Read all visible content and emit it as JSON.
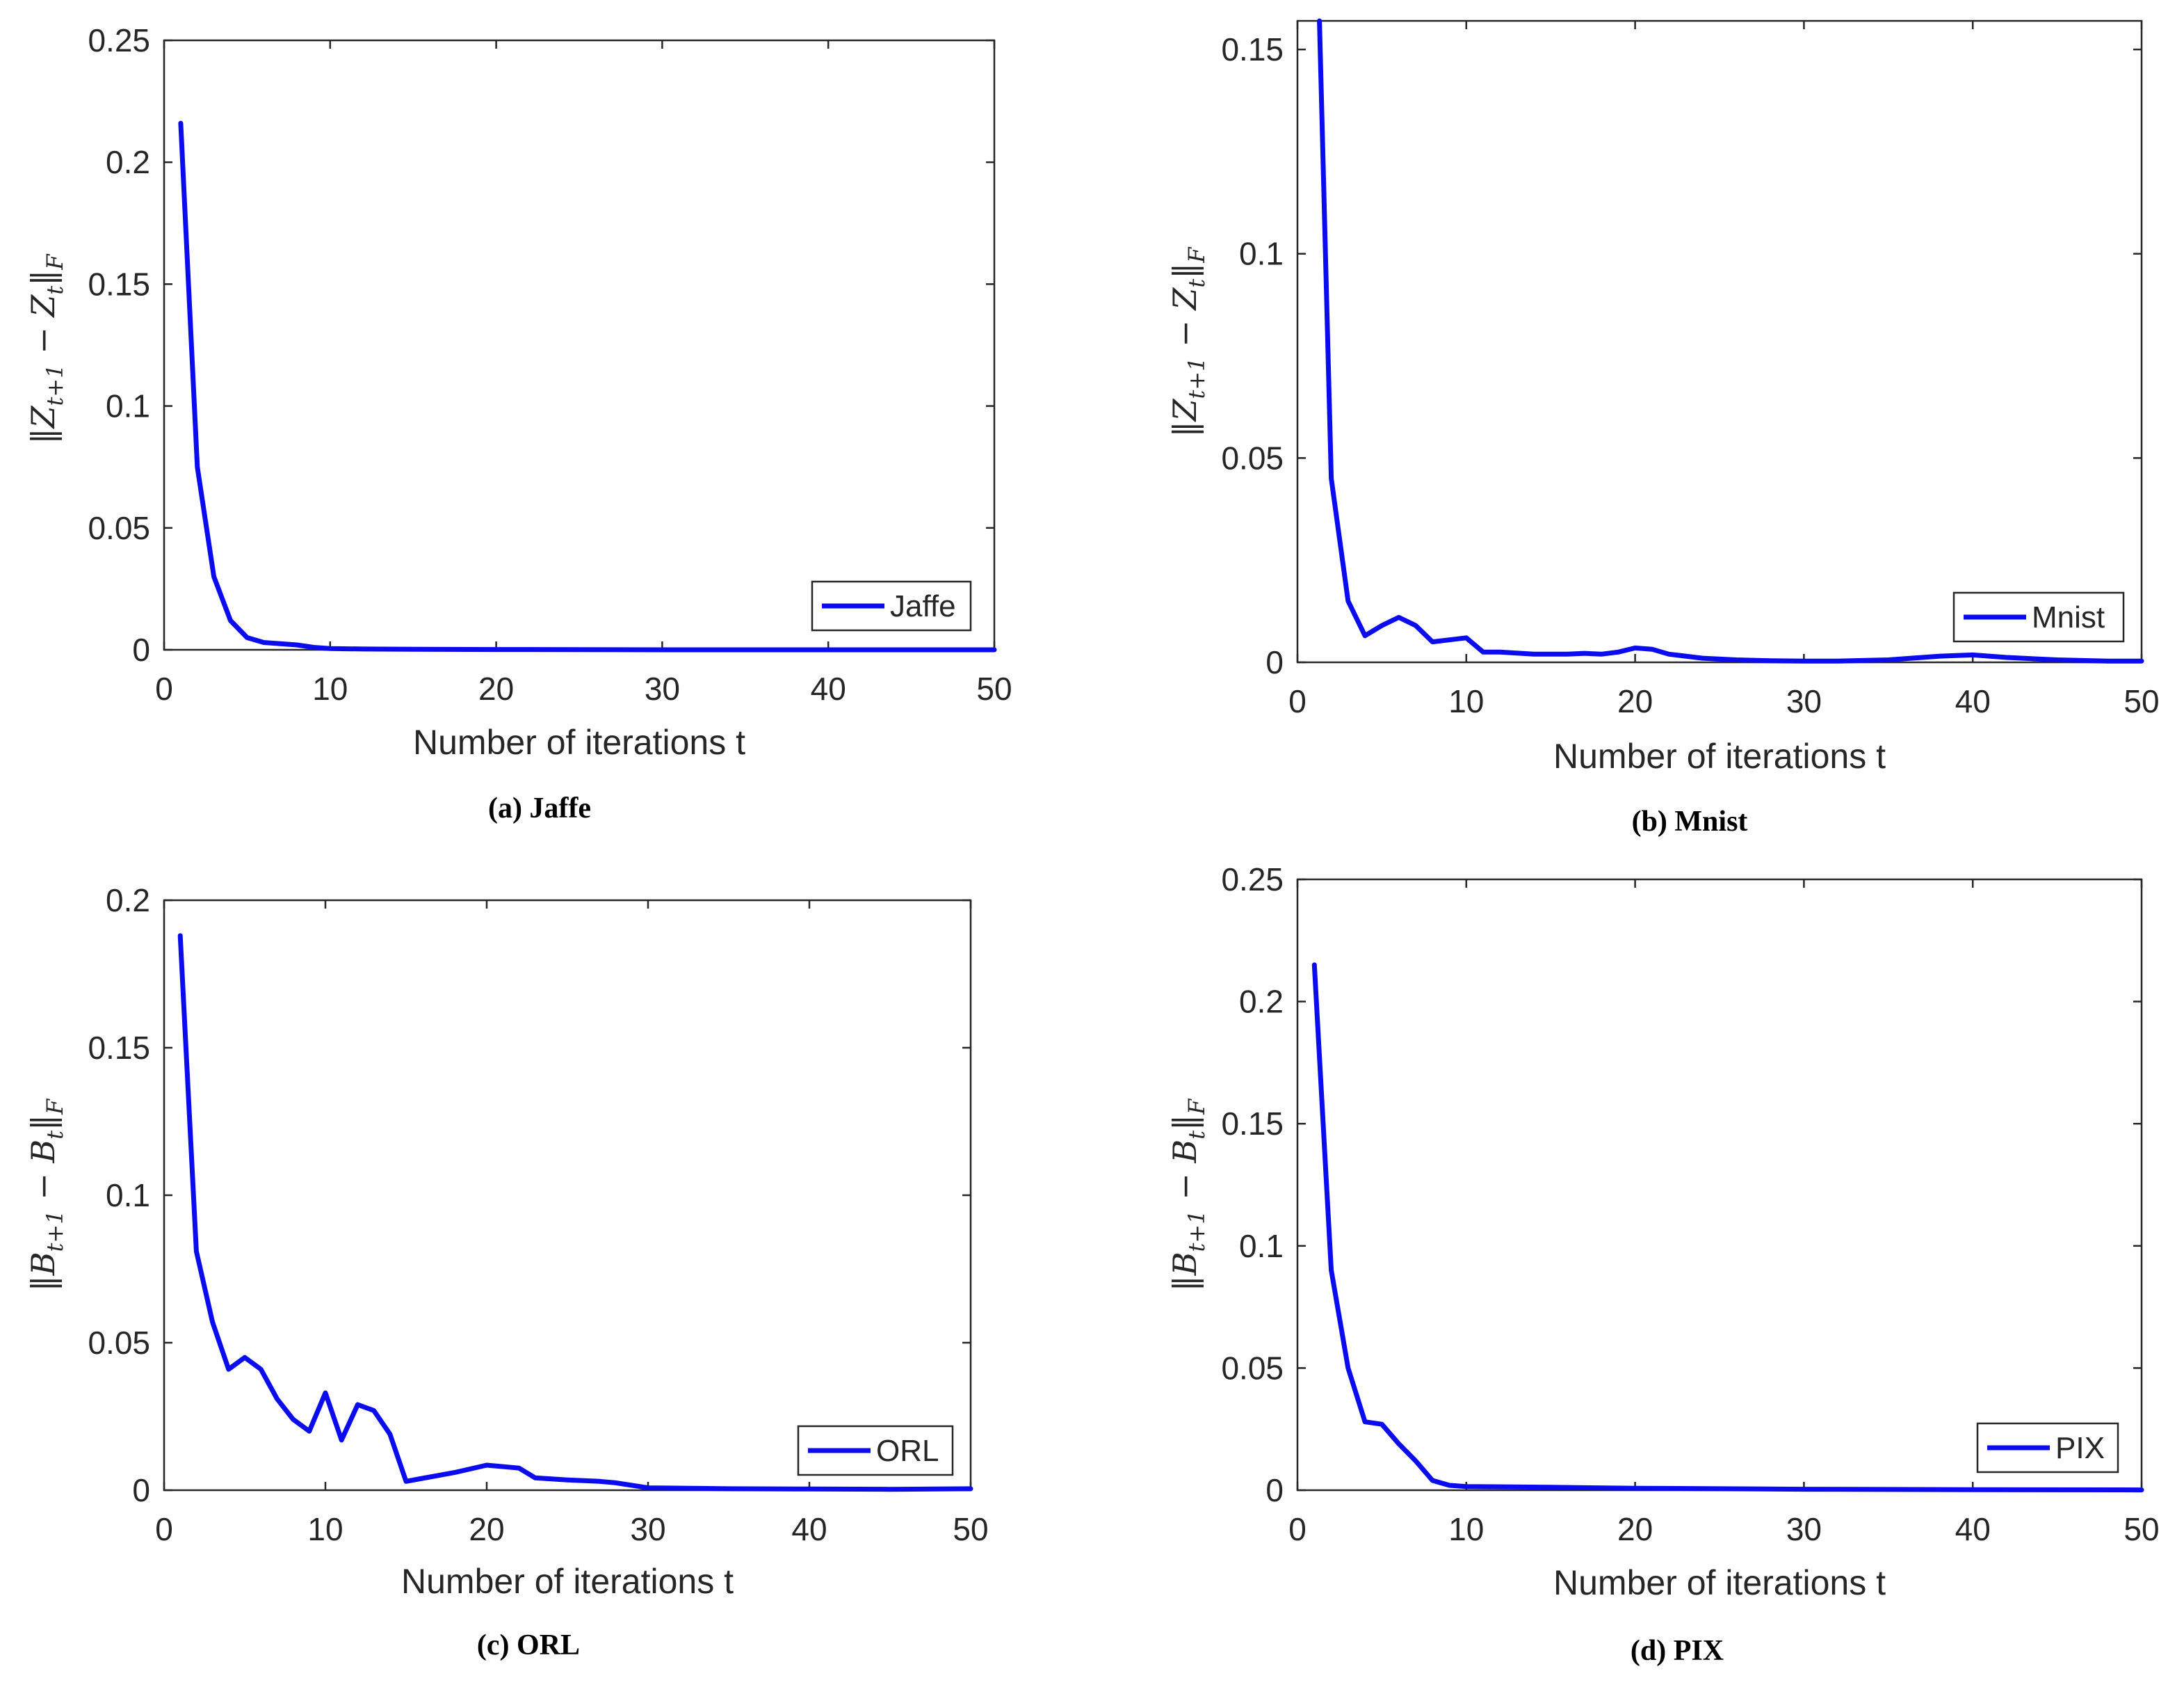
{
  "style": {
    "line_color": "#0b0bf0",
    "axis_color": "#262626"
  },
  "chart_data": [
    {
      "type": "line",
      "caption": "(a)  Jaffe",
      "ylabel": {
        "sym": "Z",
        "sub1": "t+1",
        "sub2": "t",
        "norm": "F"
      },
      "xlabel": "Number of iterations t",
      "xlim": [
        0,
        50
      ],
      "ylim": [
        0,
        0.25
      ],
      "xticks": [
        0,
        10,
        20,
        30,
        40,
        50
      ],
      "xtick_labels": [
        "0",
        "10",
        "20",
        "30",
        "40",
        "50"
      ],
      "yticks": [
        0,
        0.05,
        0.1,
        0.15,
        0.2,
        0.25
      ],
      "ytick_labels": [
        "0",
        "0.05",
        "0.1",
        "0.15",
        "0.2",
        "0.25"
      ],
      "legend": "Jaffe",
      "legend_position": "bottom-right",
      "series": [
        {
          "name": "Jaffe",
          "x": [
            1,
            2,
            3,
            4,
            5,
            6,
            7,
            8,
            9,
            10,
            12,
            15,
            20,
            30,
            40,
            50
          ],
          "y": [
            0.216,
            0.075,
            0.03,
            0.012,
            0.005,
            0.003,
            0.0025,
            0.002,
            0.001,
            0.0005,
            0.0003,
            0.0002,
            0.0001,
            0,
            0,
            0
          ]
        }
      ]
    },
    {
      "type": "line",
      "caption": "(b)  Mnist",
      "ylabel": {
        "sym": "Z",
        "sub1": "t+1",
        "sub2": "t",
        "norm": "F"
      },
      "xlabel": "Number of iterations t",
      "xlim": [
        0,
        50
      ],
      "ylim": [
        0,
        0.157
      ],
      "xticks": [
        0,
        10,
        20,
        30,
        40,
        50
      ],
      "xtick_labels": [
        "0",
        "10",
        "20",
        "30",
        "40",
        "50"
      ],
      "yticks": [
        0,
        0.05,
        0.1,
        0.15
      ],
      "ytick_labels": [
        "0",
        "0.05",
        "0.1",
        "0.15"
      ],
      "legend": "Mnist",
      "legend_position": "bottom-right",
      "series": [
        {
          "name": "Mnist",
          "x": [
            1.3,
            2,
            3,
            4,
            5,
            6,
            7,
            8,
            9,
            10,
            11,
            12,
            14,
            16,
            17,
            18,
            19,
            20,
            21,
            22,
            24,
            26,
            28,
            30,
            32,
            35,
            38,
            40,
            42,
            45,
            48,
            50
          ],
          "y": [
            0.157,
            0.045,
            0.015,
            0.0065,
            0.009,
            0.011,
            0.009,
            0.005,
            0.0055,
            0.006,
            0.0025,
            0.0025,
            0.002,
            0.002,
            0.0022,
            0.002,
            0.0025,
            0.0035,
            0.0032,
            0.002,
            0.001,
            0.0006,
            0.0004,
            0.0003,
            0.0003,
            0.0006,
            0.0015,
            0.0018,
            0.0012,
            0.0006,
            0.0003,
            0.0003
          ]
        }
      ]
    },
    {
      "type": "line",
      "caption": "(c)  ORL",
      "ylabel": {
        "sym": "B",
        "sub1": "t+1",
        "sub2": "t",
        "norm": "F"
      },
      "xlabel": "Number of iterations t",
      "xlim": [
        0,
        50
      ],
      "ylim": [
        0,
        0.2
      ],
      "xticks": [
        0,
        10,
        20,
        30,
        40,
        50
      ],
      "xtick_labels": [
        "0",
        "10",
        "20",
        "30",
        "40",
        "50"
      ],
      "yticks": [
        0,
        0.05,
        0.1,
        0.15,
        0.2
      ],
      "ytick_labels": [
        "0",
        "0.05",
        "0.1",
        "0.15",
        "0.2"
      ],
      "legend": "ORL",
      "legend_position": "bottom-right",
      "series": [
        {
          "name": "ORL",
          "x": [
            1,
            2,
            3,
            4,
            5,
            6,
            7,
            8,
            9,
            10,
            11,
            12,
            13,
            14,
            15,
            16,
            18,
            20,
            22,
            23,
            25,
            27,
            28,
            30,
            35,
            40,
            45,
            50
          ],
          "y": [
            0.188,
            0.081,
            0.057,
            0.041,
            0.045,
            0.041,
            0.031,
            0.024,
            0.02,
            0.033,
            0.017,
            0.029,
            0.027,
            0.019,
            0.003,
            0.004,
            0.006,
            0.0085,
            0.0075,
            0.0042,
            0.0035,
            0.003,
            0.0025,
            0.0008,
            0.0005,
            0.0004,
            0.0003,
            0.0005
          ]
        }
      ]
    },
    {
      "type": "line",
      "caption": "(d)  PIX",
      "ylabel": {
        "sym": "B",
        "sub1": "t+1",
        "sub2": "t",
        "norm": "F"
      },
      "xlabel": "Number of iterations t",
      "xlim": [
        0,
        50
      ],
      "ylim": [
        0,
        0.25
      ],
      "xticks": [
        0,
        10,
        20,
        30,
        40,
        50
      ],
      "xtick_labels": [
        "0",
        "10",
        "20",
        "30",
        "40",
        "50"
      ],
      "yticks": [
        0,
        0.05,
        0.1,
        0.15,
        0.2,
        0.25
      ],
      "ytick_labels": [
        "0",
        "0.05",
        "0.1",
        "0.15",
        "0.2",
        "0.25"
      ],
      "legend": "PIX",
      "legend_position": "bottom-right",
      "series": [
        {
          "name": "PIX",
          "x": [
            1,
            2,
            3,
            4,
            5,
            6,
            7,
            8,
            9,
            10,
            15,
            20,
            30,
            40,
            50
          ],
          "y": [
            0.215,
            0.09,
            0.05,
            0.028,
            0.027,
            0.019,
            0.012,
            0.004,
            0.002,
            0.0015,
            0.0012,
            0.0008,
            0.0004,
            0.0002,
            0.0001
          ]
        }
      ]
    }
  ]
}
